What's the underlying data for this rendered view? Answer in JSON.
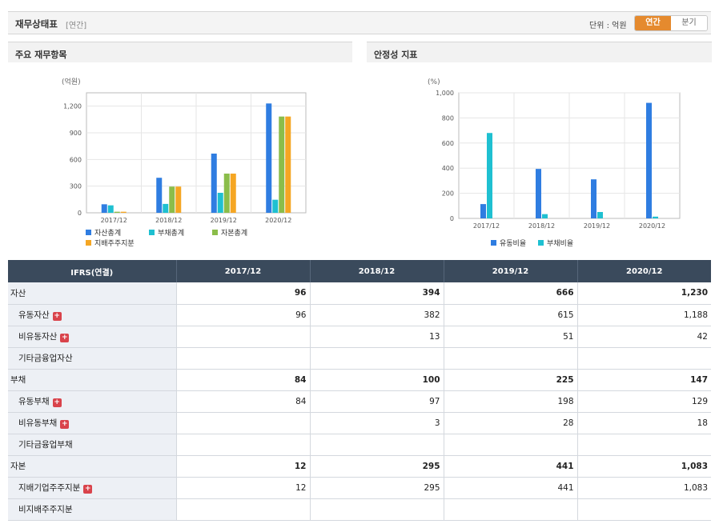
{
  "header": {
    "title": "재무상태표",
    "subtitle": "[연간]",
    "unit_label": "단위 : 억원",
    "toggle": [
      "연간",
      "분기"
    ]
  },
  "colors": {
    "blue": "#2f7de1",
    "cyan": "#1fc0d1",
    "green": "#8bbd4a",
    "orange": "#f5a623",
    "table_header": "#3a4a5c",
    "label_bg": "#edf0f5",
    "toggle_active": "#e58a2e"
  },
  "chart_left": {
    "title": "주요 재무항목",
    "unit": "(억원)",
    "chart_data": {
      "type": "bar",
      "categories": [
        "2017/12",
        "2018/12",
        "2019/12",
        "2020/12"
      ],
      "ylim": [
        0,
        1350
      ],
      "yticks": [
        0,
        300,
        600,
        900,
        1200
      ],
      "ytick_labels": [
        "0",
        "300",
        "600",
        "900",
        "1,200"
      ],
      "series": [
        {
          "name": "자산총계",
          "color": "#2f7de1",
          "values": [
            96,
            394,
            666,
            1230
          ]
        },
        {
          "name": "부채총계",
          "color": "#1fc0d1",
          "values": [
            84,
            100,
            225,
            147
          ]
        },
        {
          "name": "자본총계",
          "color": "#8bbd4a",
          "values": [
            12,
            295,
            441,
            1083
          ]
        },
        {
          "name": "지배주주지분",
          "color": "#f5a623",
          "values": [
            12,
            295,
            441,
            1083
          ]
        }
      ]
    }
  },
  "chart_right": {
    "title": "안정성 지표",
    "unit": "(%)",
    "chart_data": {
      "type": "bar",
      "categories": [
        "2017/12",
        "2018/12",
        "2019/12",
        "2020/12"
      ],
      "ylim": [
        0,
        1000
      ],
      "yticks": [
        0,
        200,
        400,
        600,
        800,
        1000
      ],
      "ytick_labels": [
        "0",
        "200",
        "400",
        "600",
        "800",
        "1,000"
      ],
      "series": [
        {
          "name": "유동비율",
          "color": "#2f7de1",
          "values": [
            114,
            394,
            311,
            920
          ]
        },
        {
          "name": "부채비율",
          "color": "#1fc0d1",
          "values": [
            680,
            34,
            51,
            14
          ]
        }
      ]
    }
  },
  "table": {
    "header": [
      "IFRS(연결)",
      "2017/12",
      "2018/12",
      "2019/12",
      "2020/12"
    ],
    "rows": [
      {
        "label": "자산",
        "type": "main",
        "plus": false,
        "values": [
          "96",
          "394",
          "666",
          "1,230"
        ]
      },
      {
        "label": "유동자산",
        "type": "sub",
        "plus": true,
        "values": [
          "96",
          "382",
          "615",
          "1,188"
        ]
      },
      {
        "label": "비유동자산",
        "type": "sub",
        "plus": true,
        "values": [
          "",
          "13",
          "51",
          "42"
        ]
      },
      {
        "label": "기타금융업자산",
        "type": "sub",
        "plus": false,
        "values": [
          "",
          "",
          "",
          ""
        ]
      },
      {
        "label": "부채",
        "type": "main",
        "plus": false,
        "values": [
          "84",
          "100",
          "225",
          "147"
        ]
      },
      {
        "label": "유동부채",
        "type": "sub",
        "plus": true,
        "values": [
          "84",
          "97",
          "198",
          "129"
        ]
      },
      {
        "label": "비유동부채",
        "type": "sub",
        "plus": true,
        "values": [
          "",
          "3",
          "28",
          "18"
        ]
      },
      {
        "label": "기타금융업부채",
        "type": "sub",
        "plus": false,
        "values": [
          "",
          "",
          "",
          ""
        ]
      },
      {
        "label": "자본",
        "type": "main",
        "plus": false,
        "values": [
          "12",
          "295",
          "441",
          "1,083"
        ]
      },
      {
        "label": "지배기업주주지분",
        "type": "sub",
        "plus": true,
        "values": [
          "12",
          "295",
          "441",
          "1,083"
        ]
      },
      {
        "label": "비지배주주지분",
        "type": "sub",
        "plus": false,
        "values": [
          "",
          "",
          "",
          ""
        ]
      }
    ]
  }
}
